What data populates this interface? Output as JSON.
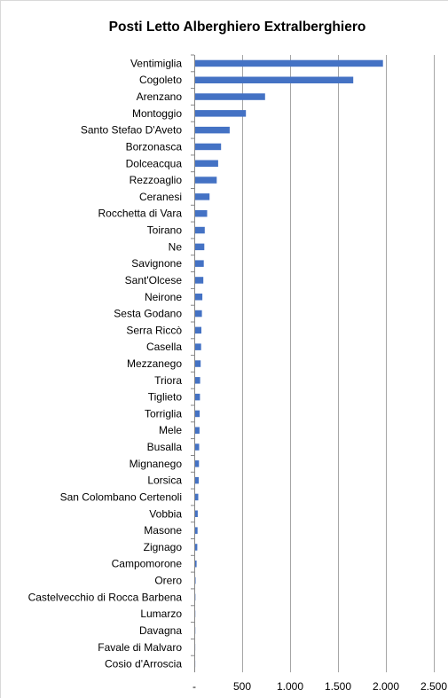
{
  "chart_data": {
    "type": "bar",
    "orientation": "horizontal",
    "title": "Posti Letto Alberghiero Extralberghiero",
    "xlabel": "",
    "ylabel": "",
    "xlim": [
      0,
      2500
    ],
    "x_ticks": [
      "-",
      "500",
      "1.000",
      "1.500",
      "2.000",
      "2.500"
    ],
    "grid": true,
    "legend": "none",
    "bar_color": "#4472c4",
    "categories": [
      "Ventimiglia",
      "Cogoleto",
      "Arenzano",
      "Montoggio",
      "Santo Stefao D'Aveto",
      "Borzonasca",
      "Dolceacqua",
      "Rezzoaglio",
      "Ceranesi",
      "Rocchetta di Vara",
      "Toirano",
      "Ne",
      "Savignone",
      "Sant'Olcese",
      "Neirone",
      "Sesta Godano",
      "Serra Riccò",
      "Casella",
      "Mezzanego",
      "Triora",
      "Tiglieto",
      "Torriglia",
      "Mele",
      "Busalla",
      "Mignanego",
      "Lorsica",
      "San Colombano Certenoli",
      "Vobbia",
      "Masone",
      "Zignago",
      "Campomorone",
      "Orero",
      "Castelvecchio di Rocca Barbena",
      "Lumarzo",
      "Davagna",
      "Favale di Malvaro",
      "Cosio d'Arroscia"
    ],
    "values": [
      1960,
      1650,
      730,
      530,
      360,
      270,
      240,
      225,
      150,
      125,
      100,
      95,
      90,
      85,
      75,
      70,
      65,
      62,
      57,
      52,
      50,
      47,
      45,
      42,
      40,
      37,
      32,
      27,
      25,
      22,
      15,
      5,
      3,
      2,
      2,
      1,
      1
    ]
  }
}
